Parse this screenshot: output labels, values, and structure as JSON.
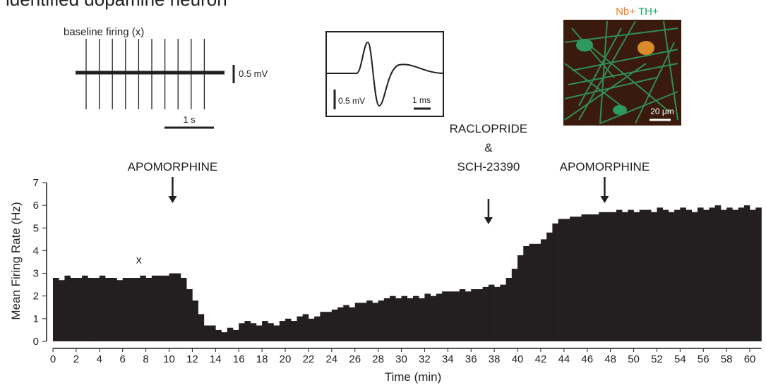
{
  "chart_data": {
    "type": "histogram",
    "title": "identified dopamine neuron",
    "xlabel": "Time (min)",
    "ylabel": "Mean Firing Rate (Hz)",
    "color": "#231f20",
    "bins": [
      0,
      0.5,
      1,
      1.5,
      2,
      2.5,
      3,
      3.5,
      4,
      4.5,
      5,
      5.5,
      6,
      6.5,
      7,
      7.5,
      8,
      8.5,
      9,
      9.5,
      10,
      10.5,
      11,
      11.5,
      12,
      12.5,
      13,
      13.5,
      14,
      14.5,
      15,
      15.5,
      16,
      16.5,
      17,
      17.5,
      18,
      18.5,
      19,
      19.5,
      20,
      20.5,
      21,
      21.5,
      22,
      22.5,
      23,
      23.5,
      24,
      24.5,
      25,
      25.5,
      26,
      26.5,
      27,
      27.5,
      28,
      28.5,
      29,
      29.5,
      30,
      30.5,
      31,
      31.5,
      32,
      32.5,
      33,
      33.5,
      34,
      34.5,
      35,
      35.5,
      36,
      36.5,
      37,
      37.5,
      38,
      38.5,
      39,
      39.5,
      40,
      40.5,
      41,
      41.5,
      42,
      42.5,
      43,
      43.5,
      44,
      44.5,
      45,
      45.5,
      46,
      46.5,
      47,
      47.5,
      48,
      48.5,
      49,
      49.5,
      50,
      50.5,
      51,
      51.5,
      52,
      52.5,
      53,
      53.5,
      54,
      54.5,
      55,
      55.5,
      56,
      56.5,
      57,
      57.5,
      58,
      58.5,
      59,
      59.5,
      60,
      60.5,
      61
    ],
    "values": [
      2.8,
      2.7,
      2.9,
      2.8,
      2.8,
      2.9,
      2.8,
      2.8,
      2.9,
      2.8,
      2.8,
      2.7,
      2.8,
      2.8,
      2.8,
      2.9,
      2.8,
      2.9,
      2.9,
      2.9,
      3.0,
      3.0,
      2.8,
      2.3,
      1.8,
      1.2,
      0.7,
      0.7,
      0.5,
      0.4,
      0.6,
      0.5,
      0.8,
      0.9,
      0.8,
      0.7,
      0.9,
      0.8,
      0.7,
      0.9,
      1.0,
      0.9,
      1.1,
      1.2,
      1.0,
      1.1,
      1.3,
      1.3,
      1.4,
      1.5,
      1.6,
      1.5,
      1.7,
      1.7,
      1.8,
      1.7,
      1.8,
      1.9,
      2.0,
      1.9,
      2.0,
      1.9,
      2.0,
      1.9,
      2.1,
      2.0,
      2.1,
      2.2,
      2.2,
      2.2,
      2.3,
      2.2,
      2.3,
      2.3,
      2.4,
      2.5,
      2.4,
      2.5,
      2.8,
      3.2,
      3.8,
      4.2,
      4.3,
      4.3,
      4.5,
      4.8,
      5.2,
      5.4,
      5.4,
      5.5,
      5.5,
      5.6,
      5.6,
      5.6,
      5.7,
      5.7,
      5.7,
      5.8,
      5.7,
      5.8,
      5.7,
      5.8,
      5.8,
      5.7,
      5.9,
      5.8,
      5.7,
      5.8,
      5.9,
      5.8,
      5.7,
      5.9,
      5.8,
      5.9,
      6.0,
      5.8,
      5.9,
      5.8,
      5.9,
      6.0,
      5.8,
      5.9
    ],
    "xlim": [
      0,
      61
    ],
    "ylim": [
      0,
      7
    ],
    "xticks": [
      0,
      2,
      4,
      6,
      8,
      10,
      12,
      14,
      16,
      18,
      20,
      22,
      24,
      26,
      28,
      30,
      32,
      34,
      36,
      38,
      40,
      42,
      44,
      46,
      48,
      50,
      52,
      54,
      56,
      58,
      60
    ],
    "yticks": [
      0,
      1,
      2,
      3,
      4,
      5,
      6,
      7
    ],
    "annotations": [
      {
        "lines": [
          "APOMORPHINE"
        ],
        "x": 10.3
      },
      {
        "lines": [
          "RACLOPRIDE",
          "&",
          "SCH-23390"
        ],
        "x": 37.5
      },
      {
        "lines": [
          "APOMORPHINE"
        ],
        "x": 47.5
      }
    ],
    "marker": {
      "text": "x",
      "x": 7.4,
      "y": 3.6
    },
    "insets": {
      "trace_title": "baseline firing (x)",
      "trace_amp": "0.5 mV",
      "trace_time": "1 s",
      "wave_amp": "0.5 mV",
      "wave_time": "1 ms",
      "stain_a": "Nb+",
      "stain_b": "TH+",
      "scale": "20 μm"
    }
  }
}
